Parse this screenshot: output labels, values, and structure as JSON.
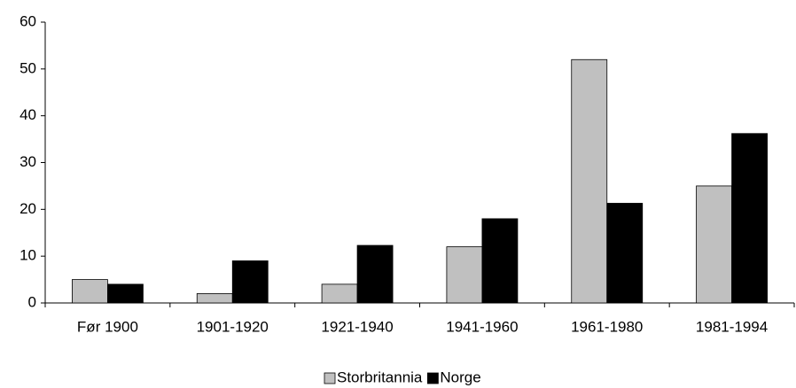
{
  "chart_data": {
    "type": "bar",
    "categories": [
      "Før 1900",
      "1901-1920",
      "1921-1940",
      "1941-1960",
      "1961-1980",
      "1981-1994"
    ],
    "series": [
      {
        "name": "Storbritannia",
        "color": "#c0c0c0",
        "values": [
          5,
          2,
          4,
          12,
          52,
          25
        ]
      },
      {
        "name": "Norge",
        "color": "#000000",
        "values": [
          4,
          9,
          12.3,
          18,
          21.3,
          36.2
        ]
      }
    ],
    "ylim": [
      0,
      60
    ],
    "yticks": [
      0,
      10,
      20,
      30,
      40,
      50,
      60
    ],
    "grid": false,
    "legend": "bottom"
  }
}
